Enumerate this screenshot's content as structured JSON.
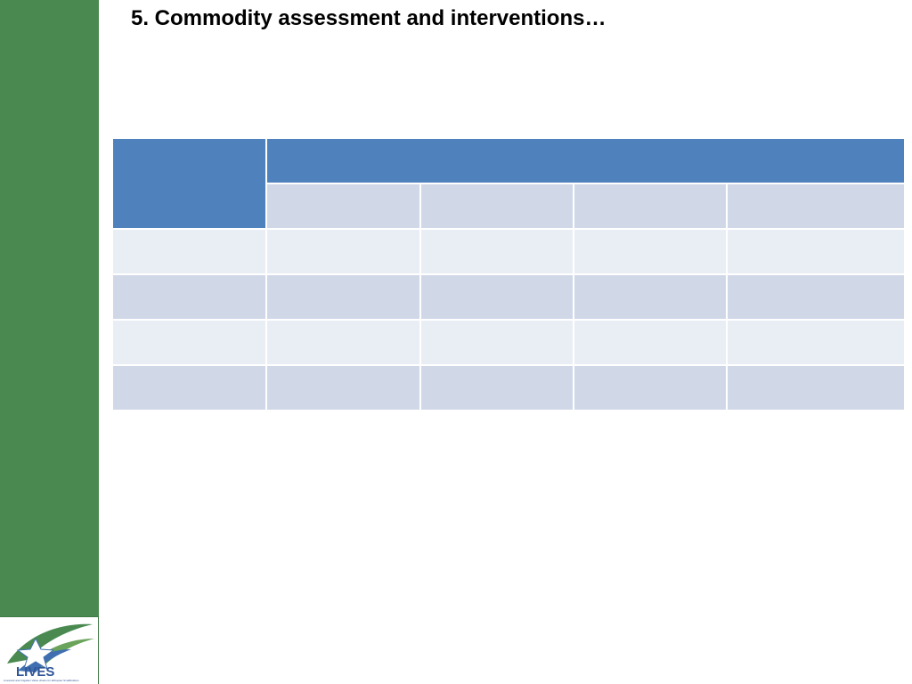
{
  "slide": {
    "title": "5. Commodity assessment and interventions…"
  },
  "logo": {
    "text": "LIVES",
    "tagline": "Livestock and Irrigation Value chains for Ethiopian Smallholders"
  },
  "colors": {
    "sidebar": "#4a8a50",
    "header": "#4f81bd",
    "row_dark": "#d0d8e8",
    "row_light": "#e9edf4"
  },
  "table": {
    "header_row1": [
      "",
      ""
    ],
    "header_row2": [
      "",
      "",
      "",
      ""
    ],
    "rows": [
      [
        "",
        "",
        "",
        "",
        ""
      ],
      [
        "",
        "",
        "",
        "",
        ""
      ],
      [
        "",
        "",
        "",
        "",
        ""
      ],
      [
        "",
        "",
        "",
        "",
        ""
      ]
    ]
  }
}
